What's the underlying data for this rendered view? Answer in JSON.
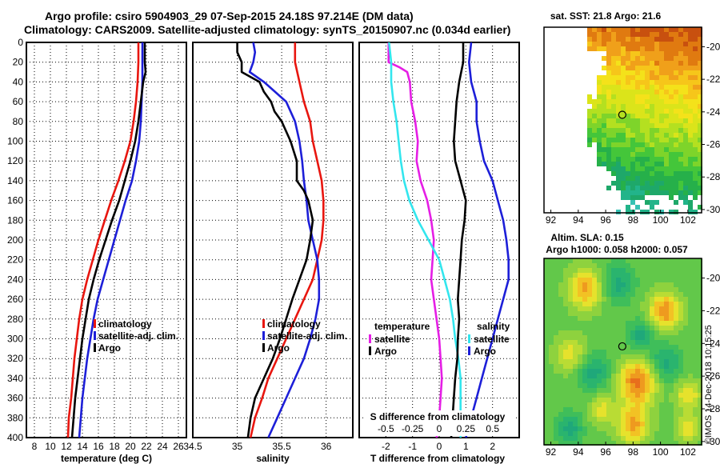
{
  "title": {
    "line1": "Argo profile: csiro 5904903_29 07-Sep-2015 24.18S 97.214E (DM data)",
    "line2": "Climatology: CARS2009. Satellite-adjusted climatology: synTS_20150907.nc (0.034d earlier)"
  },
  "colors": {
    "climatology": "#e8160f",
    "satellite_adj": "#1d1fd8",
    "argo": "#000000",
    "salinity_diff": "#33e6ee",
    "temperature_diff": "#e51ee5"
  },
  "chart_data": [
    {
      "id": "temperature",
      "type": "line",
      "xlabel": "temperature (deg C)",
      "ylabel": "",
      "xlim": [
        7,
        27
      ],
      "ylim": [
        400,
        0
      ],
      "xticks": [
        "8",
        "10",
        "12",
        "14",
        "16",
        "18",
        "20",
        "22",
        "24",
        "26"
      ],
      "yticks": [
        "0",
        "20",
        "40",
        "60",
        "80",
        "100",
        "120",
        "140",
        "160",
        "180",
        "200",
        "220",
        "240",
        "260",
        "280",
        "300",
        "320",
        "340",
        "360",
        "380",
        "400"
      ],
      "grid": true,
      "legend": {
        "position": "bottom-right",
        "entries": [
          "climatology",
          "satellite-adj. clim.",
          "Argo"
        ]
      },
      "series": [
        {
          "name": "climatology",
          "color": "#e8160f",
          "depth": [
            0,
            20,
            40,
            60,
            80,
            100,
            120,
            140,
            160,
            180,
            200,
            220,
            240,
            260,
            280,
            300,
            320,
            340,
            360,
            380,
            400
          ],
          "values": [
            21.0,
            21.0,
            20.9,
            20.7,
            20.4,
            20.0,
            19.3,
            18.5,
            17.6,
            16.8,
            16.0,
            15.3,
            14.6,
            14.0,
            13.6,
            13.3,
            13.0,
            12.8,
            12.6,
            12.3,
            12.2
          ]
        },
        {
          "name": "satellite-adj. clim.",
          "color": "#1d1fd8",
          "depth": [
            0,
            20,
            40,
            60,
            80,
            100,
            120,
            140,
            160,
            180,
            200,
            220,
            240,
            260,
            280,
            300,
            320,
            340,
            360,
            380,
            400
          ],
          "values": [
            21.5,
            21.5,
            21.5,
            21.4,
            21.3,
            21.1,
            20.7,
            20.2,
            19.4,
            18.7,
            18.0,
            17.3,
            16.6,
            15.9,
            15.4,
            15.0,
            14.6,
            14.3,
            14.0,
            13.8,
            13.6
          ]
        },
        {
          "name": "Argo",
          "color": "#000000",
          "depth": [
            0,
            20,
            30,
            40,
            60,
            80,
            100,
            120,
            140,
            160,
            180,
            200,
            220,
            240,
            260,
            280,
            300,
            320,
            340,
            360,
            380,
            400
          ],
          "values": [
            21.8,
            21.8,
            21.9,
            21.6,
            21.3,
            21.0,
            20.6,
            20.0,
            19.3,
            18.6,
            17.7,
            16.9,
            16.1,
            15.4,
            14.8,
            14.4,
            14.0,
            13.7,
            13.4,
            13.1,
            12.9,
            12.7
          ]
        }
      ]
    },
    {
      "id": "salinity",
      "type": "line",
      "xlabel": "salinity",
      "xlim": [
        34.5,
        36.3
      ],
      "ylim": [
        400,
        0
      ],
      "xticks": [
        "34.5",
        "35",
        "35.5",
        "36"
      ],
      "grid": true,
      "legend": {
        "position": "bottom-right",
        "entries": [
          "climatology",
          "satellite-adj. clim.",
          "Argo"
        ]
      },
      "series": [
        {
          "name": "climatology",
          "color": "#e8160f",
          "depth": [
            0,
            20,
            40,
            60,
            80,
            100,
            120,
            140,
            160,
            180,
            200,
            220,
            240,
            260,
            280,
            300,
            320,
            340,
            360,
            380,
            400
          ],
          "values": [
            35.65,
            35.65,
            35.7,
            35.75,
            35.82,
            35.85,
            35.9,
            35.95,
            35.97,
            35.97,
            35.95,
            35.9,
            35.85,
            35.75,
            35.65,
            35.55,
            35.45,
            35.35,
            35.28,
            35.2,
            35.15
          ]
        },
        {
          "name": "satellite-adj. clim.",
          "color": "#1d1fd8",
          "depth": [
            0,
            10,
            20,
            30,
            40,
            60,
            80,
            100,
            120,
            140,
            160,
            180,
            200,
            220,
            240,
            260,
            280,
            300,
            320,
            340,
            360,
            380,
            400
          ],
          "values": [
            35.18,
            35.2,
            35.18,
            35.14,
            35.3,
            35.55,
            35.65,
            35.7,
            35.73,
            35.75,
            35.78,
            35.8,
            35.85,
            35.9,
            35.92,
            35.92,
            35.88,
            35.82,
            35.75,
            35.65,
            35.55,
            35.45,
            35.35
          ]
        },
        {
          "name": "Argo",
          "color": "#000000",
          "depth": [
            0,
            10,
            20,
            30,
            40,
            50,
            60,
            70,
            80,
            100,
            120,
            140,
            150,
            160,
            180,
            200,
            220,
            240,
            260,
            280,
            300,
            320,
            340,
            360,
            380,
            400
          ],
          "values": [
            35.0,
            35.0,
            35.05,
            35.05,
            35.25,
            35.3,
            35.38,
            35.42,
            35.5,
            35.6,
            35.67,
            35.67,
            35.75,
            35.8,
            35.85,
            35.82,
            35.78,
            35.7,
            35.62,
            35.55,
            35.48,
            35.4,
            35.3,
            35.2,
            35.15,
            35.12
          ]
        }
      ]
    },
    {
      "id": "difference",
      "type": "line",
      "xlabel": "T difference from climatology",
      "x2label": "S difference from climatology",
      "xlim": [
        -3,
        3
      ],
      "x2lim": [
        -0.75,
        0.75
      ],
      "ylim": [
        400,
        0
      ],
      "xticks": [
        "-2",
        "-1",
        "0",
        "1",
        "2"
      ],
      "x2ticks": [
        "-0.5",
        "-0.25",
        "0",
        "0.25",
        "0.5"
      ],
      "grid": true,
      "legend": {
        "position": "bottom",
        "temperature_title": "temperature",
        "salinity_title": "salinity",
        "temperature_entries": [
          "satellite",
          "Argo"
        ],
        "salinity_entries": [
          "satellite",
          "Argo"
        ]
      },
      "series": [
        {
          "name": "temperature satellite",
          "color": "#e51ee5",
          "depth": [
            0,
            20,
            25,
            30,
            40,
            60,
            80,
            100,
            120,
            140,
            160,
            180,
            200,
            220,
            240,
            260,
            280,
            300,
            320,
            340,
            360,
            380,
            400
          ],
          "values": [
            -1.9,
            -1.9,
            -1.5,
            -1.2,
            -1.1,
            -1.05,
            -0.9,
            -0.8,
            -0.85,
            -0.7,
            -0.45,
            -0.3,
            -0.2,
            -0.25,
            -0.3,
            -0.2,
            -0.1,
            0.0,
            0.05,
            0.1,
            0.05,
            0.0,
            -0.1
          ]
        },
        {
          "name": "salinity satellite",
          "color": "#33e6ee",
          "depth": [
            0,
            20,
            40,
            60,
            80,
            100,
            120,
            140,
            160,
            180,
            200,
            220,
            240,
            260,
            280,
            300,
            320,
            340,
            360,
            380,
            400
          ],
          "values": [
            -0.47,
            -0.45,
            -0.45,
            -0.43,
            -0.4,
            -0.38,
            -0.36,
            -0.33,
            -0.28,
            -0.2,
            -0.1,
            0.0,
            0.05,
            0.1,
            0.13,
            0.15,
            0.18,
            0.2,
            0.2,
            0.2,
            0.2
          ]
        },
        {
          "name": "temperature Argo",
          "color": "#000000",
          "depth": [
            0,
            20,
            40,
            60,
            80,
            100,
            120,
            140,
            160,
            180,
            200,
            220,
            240,
            260,
            280,
            300,
            320,
            340,
            360,
            380,
            400
          ],
          "values": [
            0.9,
            0.9,
            0.75,
            0.65,
            0.6,
            0.55,
            0.6,
            0.8,
            1.0,
            0.95,
            0.85,
            0.8,
            0.75,
            0.7,
            0.75,
            0.7,
            0.68,
            0.6,
            0.55,
            0.5,
            0.45
          ]
        },
        {
          "name": "salinity Argo",
          "color": "#1d1fd8",
          "depth": [
            0,
            20,
            40,
            60,
            80,
            100,
            120,
            140,
            160,
            180,
            200,
            220,
            240,
            260,
            280,
            300,
            320,
            340,
            360,
            380,
            400
          ],
          "values": [
            0.3,
            0.28,
            0.3,
            0.35,
            0.35,
            0.38,
            0.42,
            0.5,
            0.55,
            0.6,
            0.63,
            0.65,
            0.65,
            0.6,
            0.55,
            0.5,
            0.45,
            0.4,
            0.35,
            0.3,
            0.25
          ]
        }
      ]
    },
    {
      "id": "sst-map",
      "type": "heatmap",
      "title": "sat. SST: 21.8 Argo: 21.6",
      "xticks": [
        "92",
        "94",
        "96",
        "98",
        "100",
        "102"
      ],
      "yticks": [
        "-20",
        "-22",
        "-24",
        "-26",
        "-28",
        "-30"
      ],
      "xlim": [
        91.5,
        103
      ],
      "ylim": [
        -30.2,
        -18.8
      ],
      "argo_position": {
        "lon": 97.214,
        "lat": -24.18
      }
    },
    {
      "id": "sla-map",
      "type": "heatmap",
      "title": "Altim. SLA: 0.15",
      "subtitle": "Argo h1000: 0.058 h2000: 0.057",
      "xticks": [
        "92",
        "94",
        "96",
        "98",
        "100",
        "102"
      ],
      "yticks": [
        "-20",
        "-22",
        "-24",
        "-26",
        "-28",
        "-30"
      ],
      "xlim": [
        91.5,
        103
      ],
      "ylim": [
        -30.2,
        -18.8
      ],
      "argo_position": {
        "lon": 97.214,
        "lat": -24.18
      }
    }
  ],
  "legend_labels": {
    "climatology": "climatology",
    "satellite_adj": "satellite-adj. clim.",
    "argo": "Argo"
  },
  "stamp": "©IMOS 14-Dec-2018 10:15:25"
}
